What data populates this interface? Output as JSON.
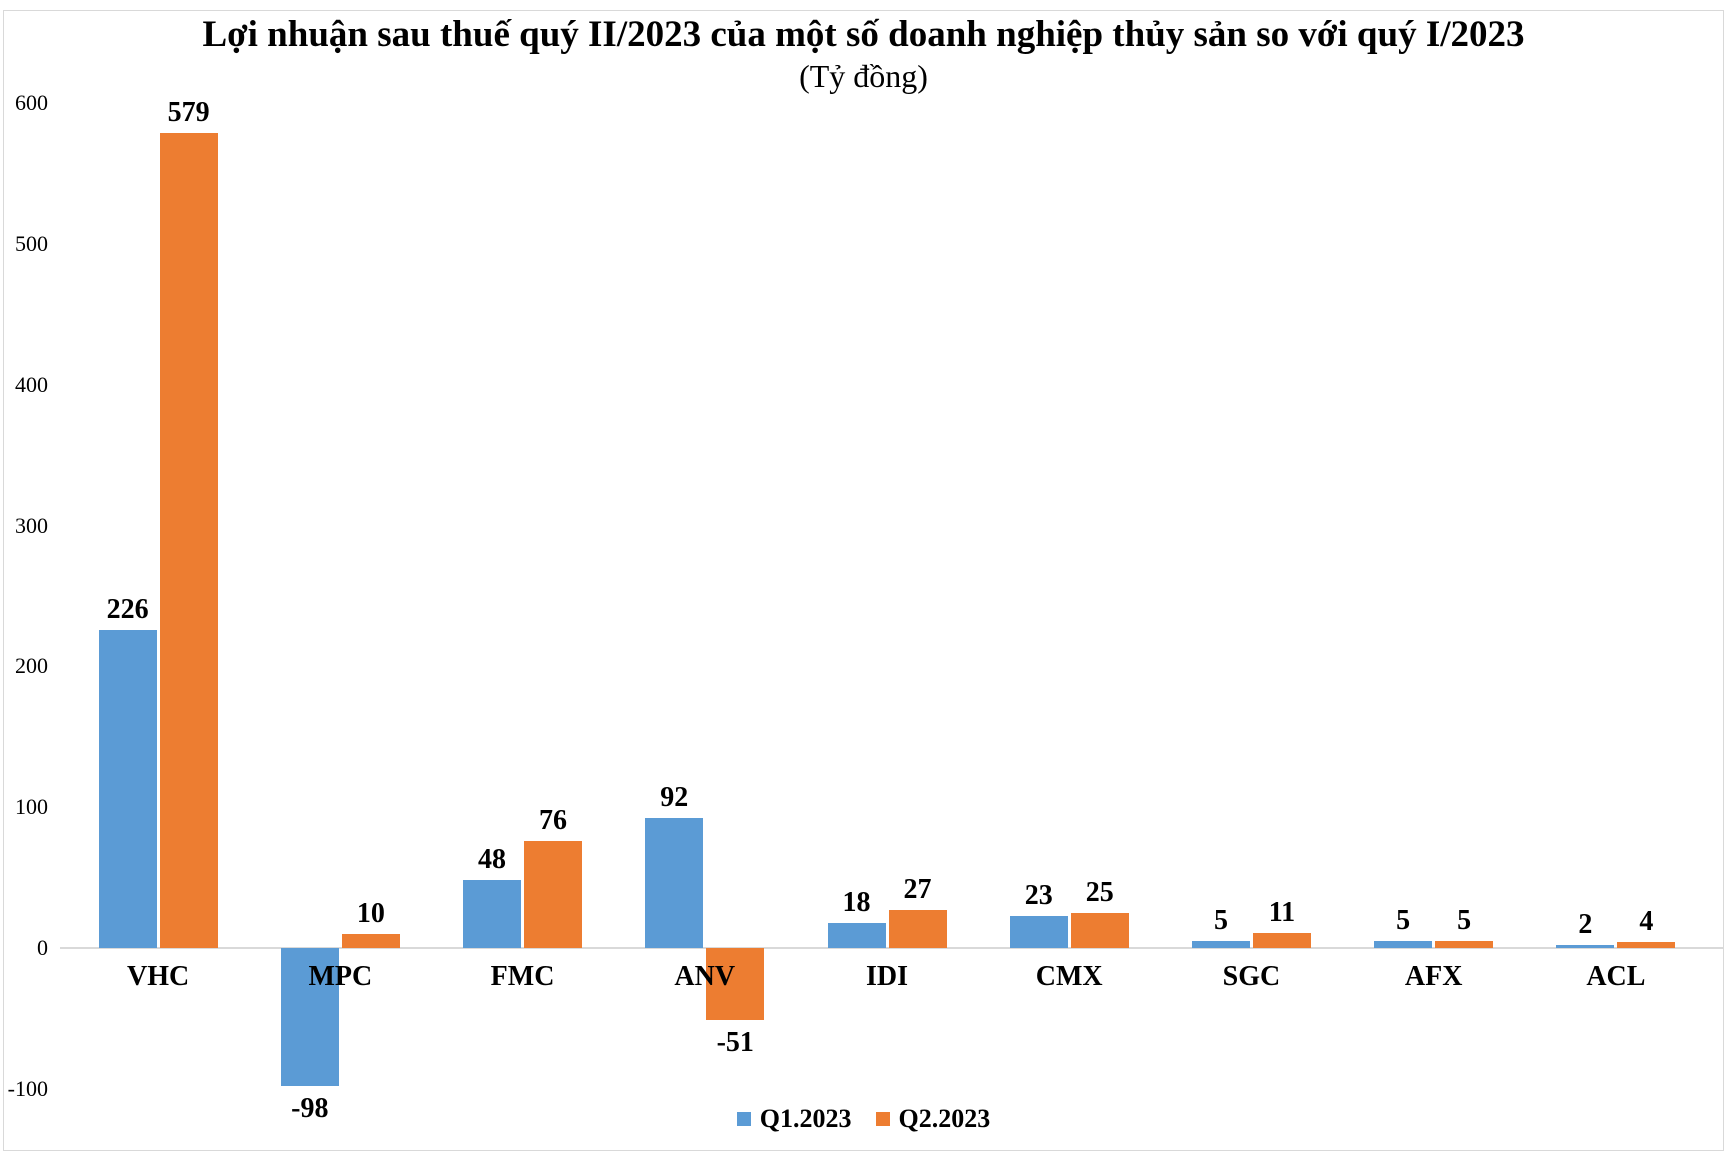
{
  "title": "Lợi nhuận sau thuế quý II/2023 của một số doanh nghiệp thủy sản so với quý I/2023",
  "subtitle": "(Tỷ đồng)",
  "colors": {
    "q1_blue": "#5B9BD5",
    "q2_orange": "#ED7D31",
    "axis_gray": "#D9D9D9",
    "border_gray": "#D9D9D9",
    "text_black": "#000000"
  },
  "legend": [
    {
      "label": "Q1.2023",
      "color": "#5B9BD5"
    },
    {
      "label": "Q2.2023",
      "color": "#ED7D31"
    }
  ],
  "chart_data": {
    "type": "bar",
    "title": "Lợi nhuận sau thuế quý II/2023 của một số doanh nghiệp thủy sản so với quý I/2023",
    "subtitle": "(Tỷ đồng)",
    "categories": [
      "VHC",
      "MPC",
      "FMC",
      "ANV",
      "IDI",
      "CMX",
      "SGC",
      "AFX",
      "ACL"
    ],
    "series": [
      {
        "name": "Q1.2023",
        "color": "#5B9BD5",
        "values": [
          226,
          -98,
          48,
          92,
          18,
          23,
          5,
          5,
          2
        ]
      },
      {
        "name": "Q2.2023",
        "color": "#ED7D31",
        "values": [
          579,
          10,
          76,
          -51,
          27,
          25,
          11,
          5,
          4
        ]
      }
    ],
    "value_labels": true,
    "y_ticks": [
      600,
      500,
      400,
      300,
      200,
      100,
      0,
      -100
    ],
    "ylim": [
      -100,
      600
    ],
    "xlabel": "",
    "ylabel": "",
    "grid": false,
    "legend_position": "bottom-center"
  }
}
